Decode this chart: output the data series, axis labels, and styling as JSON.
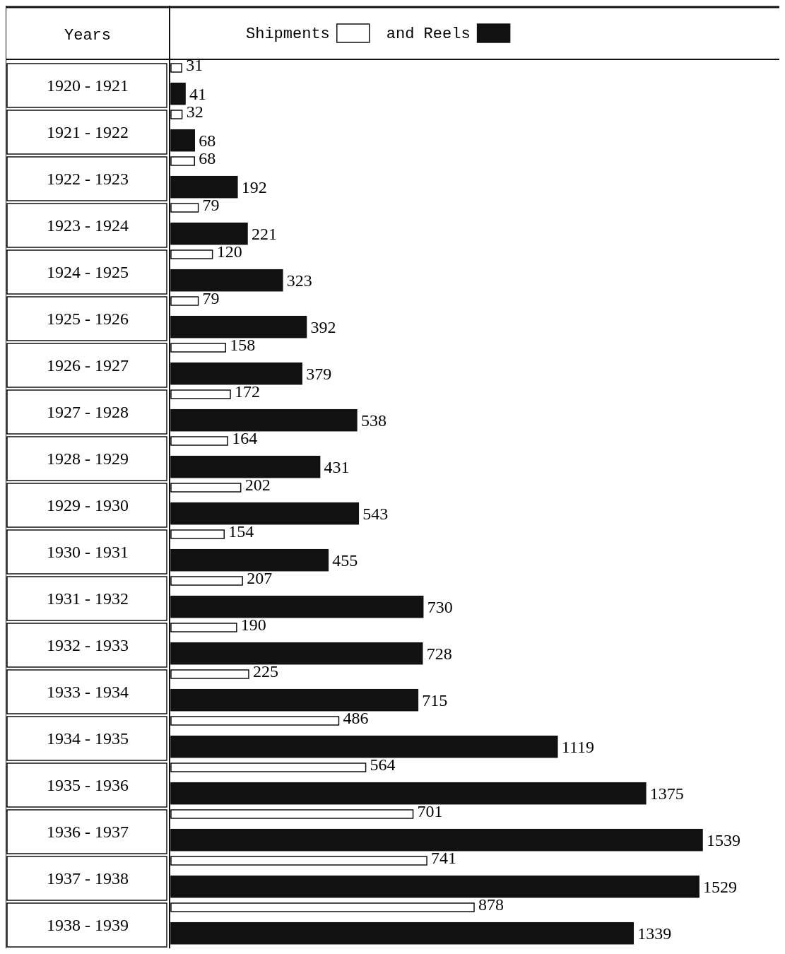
{
  "chart_data": {
    "type": "bar",
    "orientation": "horizontal",
    "ylabel": "Years",
    "legend": "top",
    "data_labels": true,
    "categories": [
      "1920 - 1921",
      "1921 - 1922",
      "1922 - 1923",
      "1923 - 1924",
      "1924 - 1925",
      "1925 - 1926",
      "1926 - 1927",
      "1927 - 1928",
      "1928 - 1929",
      "1929 - 1930",
      "1930 - 1931",
      "1931 - 1932",
      "1932 - 1933",
      "1933 - 1934",
      "1934 - 1935",
      "1935 - 1936",
      "1936 - 1937",
      "1937 - 1938",
      "1938 - 1939"
    ],
    "series": [
      {
        "name": "Shipments",
        "color": "#ffffff",
        "values": [
          31,
          32,
          68,
          79,
          120,
          79,
          158,
          172,
          164,
          202,
          154,
          207,
          190,
          225,
          486,
          564,
          701,
          741,
          878
        ]
      },
      {
        "name": "and Reels",
        "color": "#111111",
        "values": [
          41,
          68,
          192,
          221,
          323,
          392,
          379,
          538,
          431,
          543,
          455,
          730,
          728,
          715,
          1119,
          1375,
          1539,
          1529,
          1339
        ]
      }
    ]
  }
}
